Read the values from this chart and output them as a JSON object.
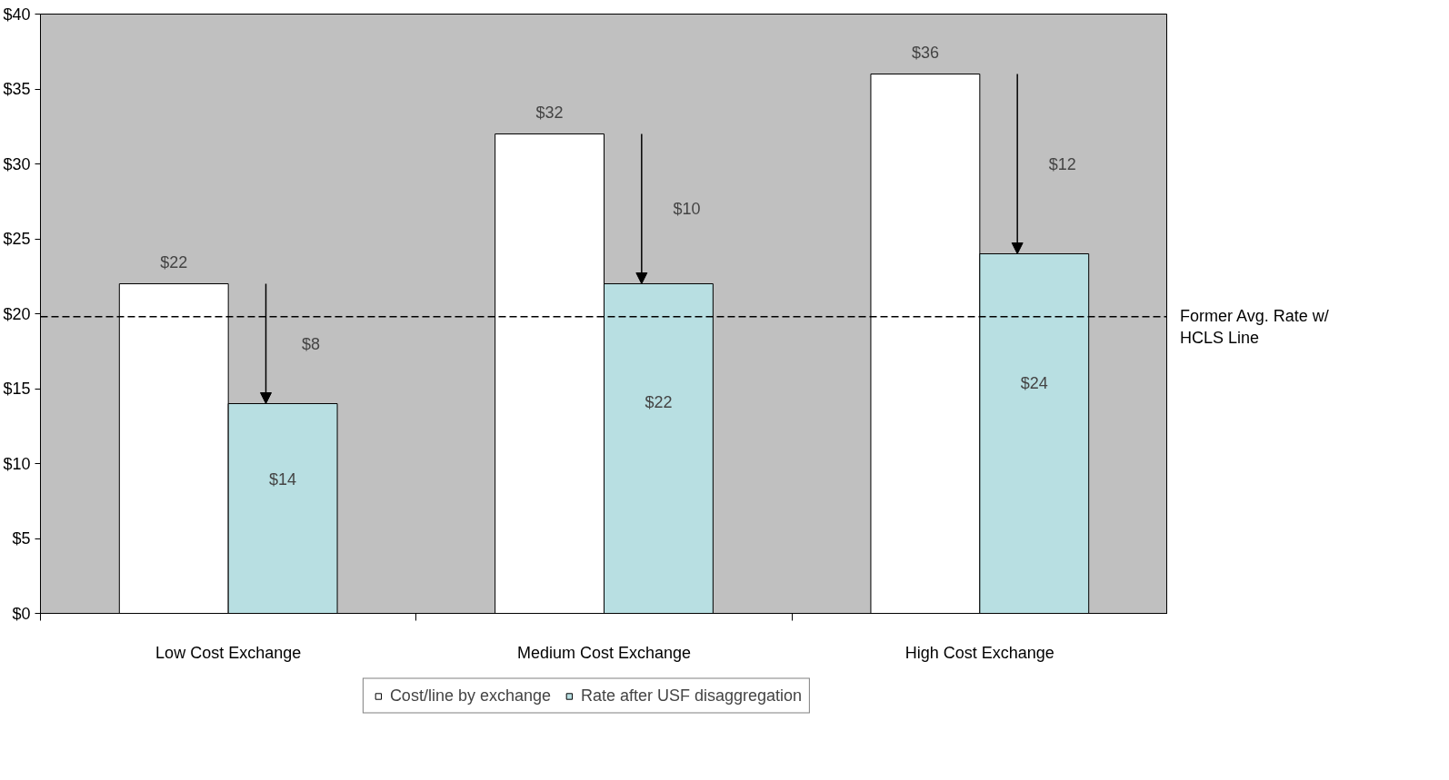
{
  "chart_data": {
    "type": "bar",
    "categories": [
      "Low Cost Exchange",
      "Medium Cost Exchange",
      "High Cost Exchange"
    ],
    "series": [
      {
        "name": "Cost/line by exchange",
        "color": "#ffffff",
        "values": [
          22,
          32,
          36
        ],
        "value_labels": [
          "$22",
          "$32",
          "$36"
        ]
      },
      {
        "name": "Rate after USF disaggregation",
        "color": "#b8dfe2",
        "values": [
          14,
          22,
          24
        ],
        "value_labels": [
          "$14",
          "$22",
          "$24"
        ]
      }
    ],
    "ylim": [
      0,
      40
    ],
    "yticks": [
      {
        "value": 0,
        "label": "$0"
      },
      {
        "value": 5,
        "label": "$5"
      },
      {
        "value": 10,
        "label": "$10"
      },
      {
        "value": 15,
        "label": "$15"
      },
      {
        "value": 20,
        "label": "$20"
      },
      {
        "value": 25,
        "label": "$25"
      },
      {
        "value": 30,
        "label": "$30"
      },
      {
        "value": 35,
        "label": "$35"
      },
      {
        "value": 40,
        "label": "$40"
      }
    ],
    "grid": false,
    "legend": "bottom",
    "ref_lines": [
      {
        "axis": "y",
        "value": 19.8,
        "label": "Former Avg. Rate w/ HCLS Line",
        "line_style": "dashed",
        "color": "#000000"
      }
    ],
    "annotations": [
      "$8",
      "$10",
      "$12"
    ]
  }
}
